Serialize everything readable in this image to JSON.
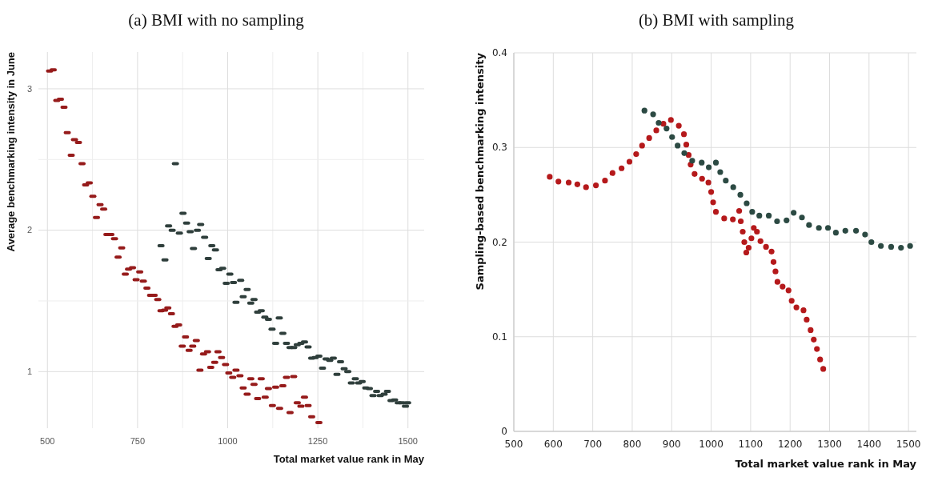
{
  "chart_data": [
    {
      "type": "scatter",
      "title": "(a) BMI with no sampling",
      "xlabel": "Total market value rank in May",
      "ylabel": "Average benchmarking intensity in June",
      "xlim": [
        475,
        1545
      ],
      "ylim": [
        0.6,
        3.26
      ],
      "xticks": [
        500,
        {
          "value": 625,
          "label": null
        },
        750,
        {
          "value": 875,
          "label": null
        },
        1000,
        {
          "value": 1125,
          "label": null
        },
        1250,
        {
          "value": 1375,
          "label": null
        },
        1500
      ],
      "yticks": [
        1,
        {
          "value": 1.5,
          "label": null
        },
        2,
        {
          "value": 2.5,
          "label": null
        },
        3
      ],
      "grid": true,
      "series": [
        {
          "color": "#961b1b",
          "x": [
            506,
            516,
            526,
            536,
            546,
            555,
            566,
            575,
            586,
            596,
            606,
            616,
            626,
            636,
            646,
            656,
            665,
            676,
            686,
            696,
            706,
            716,
            725,
            736,
            746,
            756,
            766,
            776,
            786,
            796,
            806,
            815,
            825,
            834,
            844,
            854,
            864,
            874,
            883,
            893,
            903,
            913,
            923,
            933,
            944,
            953,
            964,
            973,
            983,
            994,
            1003,
            1014,
            1023,
            1034,
            1043,
            1054,
            1064,
            1073,
            1083,
            1093,
            1104,
            1113,
            1124,
            1133,
            1144,
            1153,
            1163,
            1173,
            1183,
            1193,
            1203,
            1213,
            1223,
            1233,
            1253
          ],
          "values": [
            3.125,
            3.134,
            2.917,
            2.926,
            2.87,
            2.69,
            2.53,
            2.64,
            2.62,
            2.47,
            2.32,
            2.335,
            2.24,
            2.09,
            2.18,
            2.15,
            1.97,
            1.97,
            1.94,
            1.81,
            1.875,
            1.69,
            1.725,
            1.735,
            1.65,
            1.705,
            1.64,
            1.59,
            1.54,
            1.54,
            1.51,
            1.43,
            1.435,
            1.45,
            1.41,
            1.32,
            1.33,
            1.18,
            1.245,
            1.15,
            1.18,
            1.22,
            1.01,
            1.125,
            1.14,
            1.03,
            1.065,
            1.14,
            1.1,
            1.05,
            0.99,
            0.96,
            1.01,
            0.97,
            0.885,
            0.84,
            0.95,
            0.91,
            0.81,
            0.95,
            0.82,
            0.88,
            0.76,
            0.89,
            0.74,
            0.9,
            0.96,
            0.71,
            0.965,
            0.78,
            0.755,
            0.82,
            0.76,
            0.68,
            0.64
          ]
        },
        {
          "color": "#2f3f3c",
          "x": [
            815,
            826,
            836,
            846,
            855,
            866,
            876,
            886,
            896,
            905,
            916,
            925,
            936,
            946,
            956,
            966,
            976,
            986,
            996,
            1006,
            1016,
            1023,
            1036,
            1043,
            1054,
            1064,
            1073,
            1083,
            1093,
            1103,
            1113,
            1123,
            1133,
            1143,
            1153,
            1163,
            1173,
            1183,
            1193,
            1203,
            1213,
            1223,
            1233,
            1243,
            1253,
            1263,
            1273,
            1283,
            1293,
            1303,
            1313,
            1323,
            1333,
            1343,
            1354,
            1363,
            1373,
            1383,
            1393,
            1403,
            1413,
            1423,
            1434,
            1443,
            1453,
            1463,
            1473,
            1483,
            1493,
            1499
          ],
          "values": [
            1.89,
            1.79,
            2.03,
            2.0,
            2.47,
            1.98,
            2.12,
            2.05,
            1.99,
            1.87,
            2.0,
            2.04,
            1.95,
            1.8,
            1.89,
            1.86,
            1.72,
            1.73,
            1.625,
            1.69,
            1.63,
            1.49,
            1.645,
            1.53,
            1.58,
            1.485,
            1.51,
            1.42,
            1.43,
            1.385,
            1.37,
            1.3,
            1.2,
            1.38,
            1.27,
            1.2,
            1.17,
            1.17,
            1.19,
            1.2,
            1.21,
            1.175,
            1.095,
            1.1,
            1.11,
            1.025,
            1.09,
            1.08,
            1.095,
            0.98,
            1.07,
            1.02,
            1.0,
            0.92,
            0.95,
            0.92,
            0.93,
            0.885,
            0.88,
            0.83,
            0.86,
            0.83,
            0.84,
            0.86,
            0.795,
            0.8,
            0.78,
            0.78,
            0.755,
            0.78
          ]
        }
      ]
    },
    {
      "type": "scatter",
      "title": "(b) BMI with sampling",
      "xlabel": "Total market value rank in May",
      "ylabel": "Sampling-based benchmarking intensity",
      "xlim": [
        500,
        1520
      ],
      "ylim": [
        0,
        0.4
      ],
      "xticks": [
        500,
        600,
        700,
        800,
        900,
        1000,
        1100,
        1200,
        1300,
        1400,
        1500
      ],
      "yticks": [
        0,
        0.1,
        0.2,
        0.3,
        0.4
      ],
      "grid": true,
      "marker": "circle",
      "series": [
        {
          "color": "#b5191b",
          "x": [
            591,
            613,
            639,
            661,
            683,
            708,
            731,
            750,
            773,
            793,
            810,
            825,
            843,
            861,
            879,
            898,
            918,
            931,
            937,
            943,
            948,
            958,
            977,
            993,
            1000,
            1005,
            1012,
            1033,
            1055,
            1071,
            1075,
            1080,
            1084,
            1089,
            1095,
            1102,
            1108,
            1116,
            1125,
            1139,
            1153,
            1158,
            1163,
            1168,
            1181,
            1196,
            1204,
            1216,
            1234,
            1242,
            1252,
            1260,
            1268,
            1276,
            1284
          ],
          "values": [
            0.269,
            0.264,
            0.263,
            0.261,
            0.258,
            0.26,
            0.265,
            0.273,
            0.278,
            0.285,
            0.293,
            0.302,
            0.31,
            0.318,
            0.325,
            0.329,
            0.323,
            0.314,
            0.303,
            0.292,
            0.282,
            0.272,
            0.267,
            0.263,
            0.253,
            0.242,
            0.232,
            0.225,
            0.224,
            0.233,
            0.222,
            0.211,
            0.2,
            0.189,
            0.194,
            0.204,
            0.215,
            0.211,
            0.201,
            0.195,
            0.19,
            0.179,
            0.169,
            0.158,
            0.153,
            0.149,
            0.138,
            0.131,
            0.128,
            0.118,
            0.107,
            0.097,
            0.087,
            0.076,
            0.066
          ]
        },
        {
          "color": "#2c4a43",
          "x": [
            831,
            853,
            867,
            887,
            901,
            915,
            932,
            952,
            976,
            994,
            1012,
            1023,
            1037,
            1056,
            1074,
            1090,
            1104,
            1122,
            1146,
            1167,
            1191,
            1209,
            1230,
            1248,
            1273,
            1296,
            1316,
            1340,
            1367,
            1390,
            1406,
            1430,
            1456,
            1481,
            1504
          ],
          "values": [
            0.339,
            0.335,
            0.326,
            0.32,
            0.311,
            0.302,
            0.294,
            0.286,
            0.284,
            0.279,
            0.284,
            0.274,
            0.265,
            0.258,
            0.25,
            0.241,
            0.232,
            0.228,
            0.228,
            0.222,
            0.223,
            0.231,
            0.226,
            0.218,
            0.215,
            0.215,
            0.21,
            0.212,
            0.212,
            0.208,
            0.2,
            0.196,
            0.195,
            0.194,
            0.196
          ]
        }
      ]
    }
  ]
}
